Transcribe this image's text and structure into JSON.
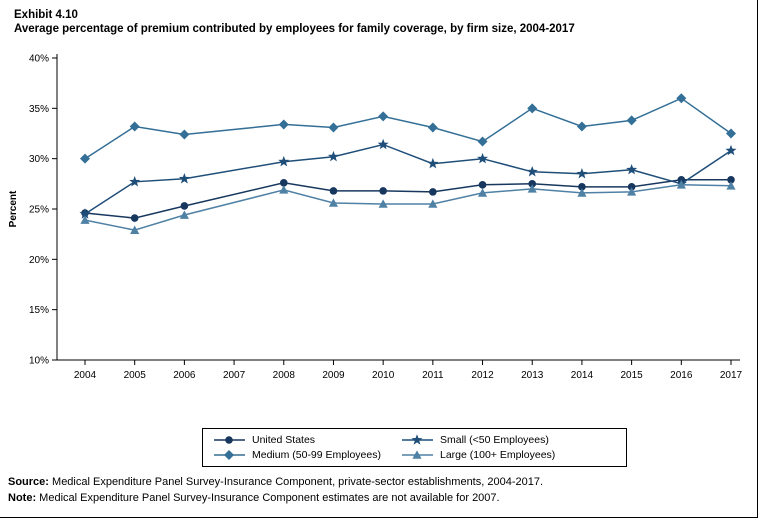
{
  "header": {
    "exhibit_label": "Exhibit 4.10",
    "title": "Average percentage of premium contributed by employees for family coverage, by firm size, 2004-2017"
  },
  "chart_data": {
    "type": "line",
    "title": "Average percentage of premium contributed by employees for family coverage, by firm size, 2004-2017",
    "xlabel": "",
    "ylabel": "Percent",
    "ylim": [
      10,
      40
    ],
    "ytick_step": 5,
    "ytick_suffix": "%",
    "grid": false,
    "legend_position": "bottom",
    "missing_data_note": "No estimates for 2007 (gap in all series)",
    "categories": [
      "2004",
      "2005",
      "2006",
      "2007",
      "2008",
      "2009",
      "2010",
      "2011",
      "2012",
      "2013",
      "2014",
      "2015",
      "2016",
      "2017"
    ],
    "series": [
      {
        "name": "United States",
        "marker": "circle",
        "color": "#17375E",
        "values": [
          24.6,
          24.1,
          25.3,
          null,
          27.6,
          26.8,
          26.8,
          26.7,
          27.4,
          27.5,
          27.2,
          27.2,
          27.9,
          27.9
        ]
      },
      {
        "name": "Medium (50-99 Employees)",
        "marker": "diamond",
        "color": "#336F96",
        "values": [
          30.0,
          33.2,
          32.4,
          null,
          33.4,
          33.1,
          34.2,
          33.1,
          31.7,
          35.0,
          33.2,
          33.8,
          36.0,
          32.5
        ]
      },
      {
        "name": "Small (<50 Employees)",
        "marker": "star",
        "color": "#1F4E79",
        "values": [
          24.5,
          27.7,
          28.0,
          null,
          29.7,
          30.2,
          31.4,
          29.5,
          30.0,
          28.7,
          28.5,
          28.9,
          27.5,
          30.8
        ]
      },
      {
        "name": "Large (100+ Employees)",
        "marker": "triangle",
        "color": "#4F81A5",
        "values": [
          23.9,
          22.9,
          24.4,
          null,
          26.9,
          25.6,
          25.5,
          25.5,
          26.6,
          27.0,
          26.6,
          26.7,
          27.4,
          27.3
        ]
      }
    ]
  },
  "notes": {
    "source_label": "Source:",
    "source_text": " Medical Expenditure Panel Survey-Insurance Component, private-sector establishments, 2004-2017.",
    "note_label": "Note:",
    "note_text": " Medical Expenditure Panel Survey-Insurance Component estimates are not available for 2007."
  }
}
